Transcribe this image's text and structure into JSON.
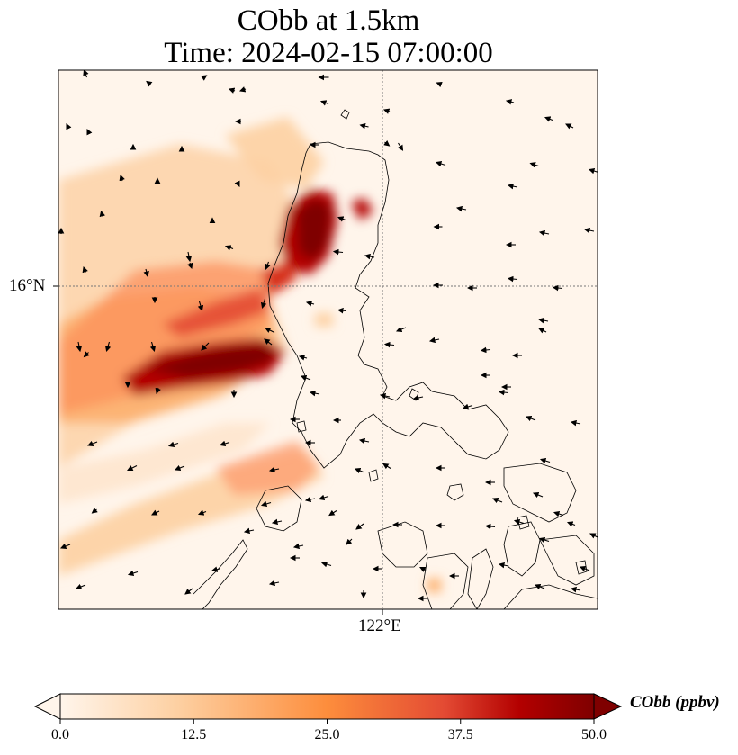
{
  "title": {
    "line1": "CObb at 1.5km",
    "line2": "Time: 2024-02-15 07:00:00"
  },
  "axes": {
    "lat_label": "16°N",
    "lon_label": "122°E"
  },
  "colorbar": {
    "label": "CObb (ppbv)",
    "ticks": [
      "0.0",
      "12.5",
      "25.0",
      "37.5",
      "50.0"
    ],
    "min": 0,
    "max": 50,
    "colormap": [
      "#fff5eb",
      "#fdd0a2",
      "#fd8d3c",
      "#d94801",
      "#b30000",
      "#7f0000"
    ]
  },
  "colors": {
    "background_low": "#fff5eb",
    "coastline": "#000000",
    "gridline": "#888888"
  }
}
